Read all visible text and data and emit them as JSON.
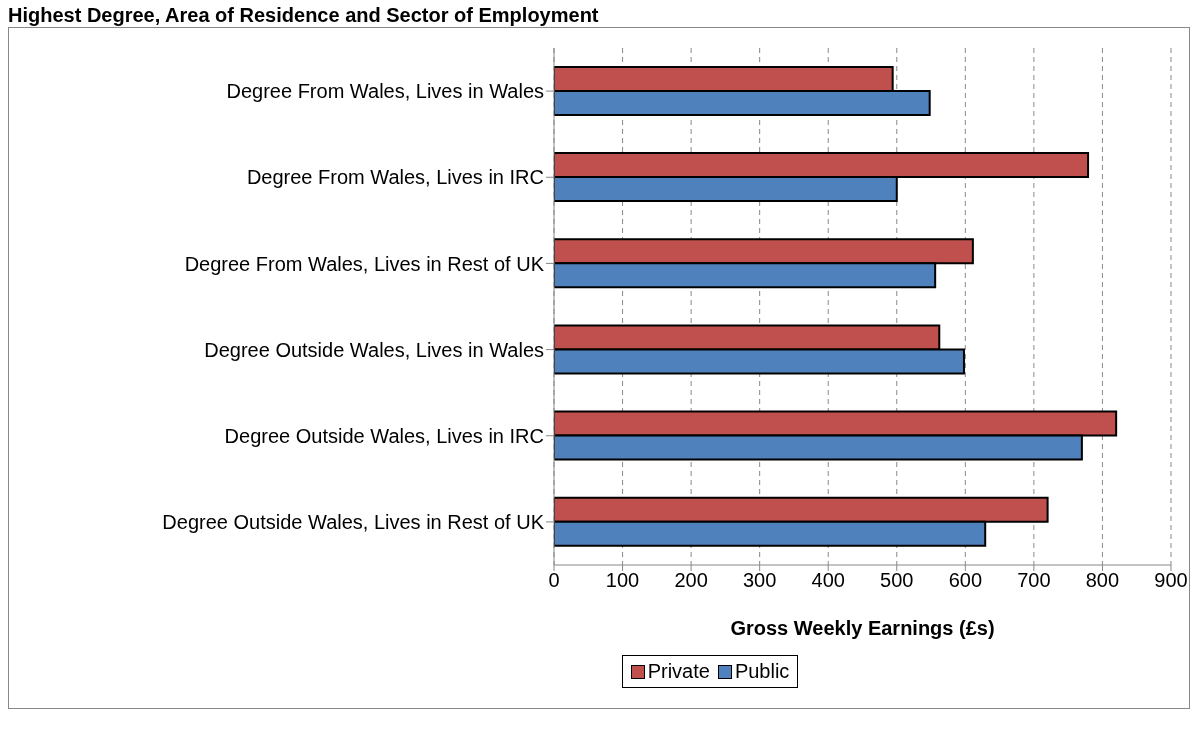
{
  "chart_data": {
    "type": "bar",
    "orientation": "horizontal",
    "title": "Highest Degree, Area of Residence and Sector of Employment",
    "xlabel": "Gross Weekly Earnings (£s)",
    "categories": [
      "Degree From Wales, Lives in Wales",
      "Degree From Wales, Lives in IRC",
      "Degree From Wales, Lives in Rest of UK",
      "Degree Outside Wales, Lives in Wales",
      "Degree Outside Wales, Lives in IRC",
      "Degree Outside Wales, Lives in Rest of UK"
    ],
    "series": [
      {
        "name": "Private",
        "color": "#c0504d",
        "values": [
          494,
          779,
          611,
          562,
          820,
          720
        ]
      },
      {
        "name": "Public",
        "color": "#4f81bd",
        "values": [
          548,
          500,
          556,
          598,
          770,
          629
        ]
      }
    ],
    "xlim": [
      0,
      900
    ],
    "xticks": [
      0,
      100,
      200,
      300,
      400,
      500,
      600,
      700,
      800,
      900
    ],
    "grid": "x",
    "legend": "bottom"
  }
}
